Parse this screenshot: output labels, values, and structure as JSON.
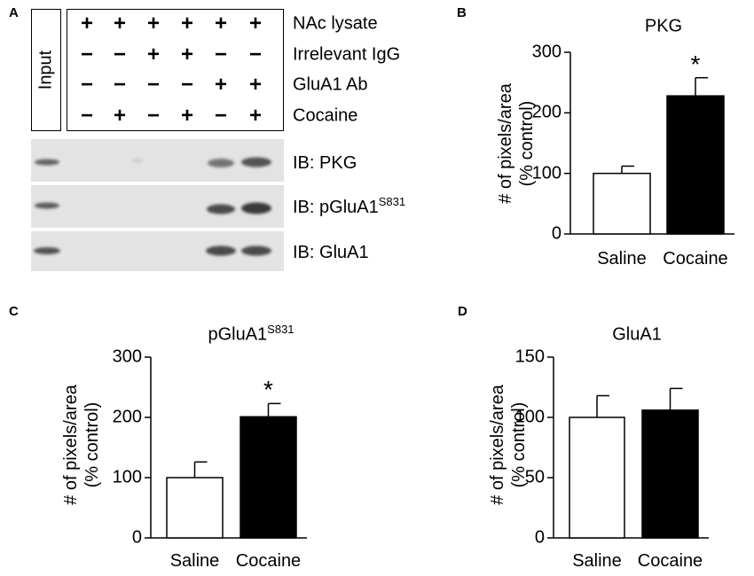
{
  "panels": {
    "a": "A",
    "b": "B",
    "c": "C",
    "d": "D"
  },
  "panel_a": {
    "input_label": "Input",
    "rows": [
      {
        "label": "NAc lysate",
        "signs": [
          "+",
          "+",
          "+",
          "+",
          "+",
          "+"
        ]
      },
      {
        "label": "Irrelevant IgG",
        "signs": [
          "−",
          "−",
          "+",
          "+",
          "−",
          "−"
        ]
      },
      {
        "label": "GluA1 Ab",
        "signs": [
          "−",
          "−",
          "−",
          "−",
          "+",
          "+"
        ]
      },
      {
        "label": "Cocaine",
        "signs": [
          "−",
          "+",
          "−",
          "+",
          "−",
          "+"
        ]
      }
    ],
    "blots": [
      {
        "label": "IB: PKG",
        "label_sup": ""
      },
      {
        "label": "IB: pGluA1",
        "label_sup": "S831"
      },
      {
        "label": "IB: GluA1",
        "label_sup": ""
      }
    ]
  },
  "chart_data": [
    {
      "panel": "B",
      "type": "bar",
      "title": "PKG",
      "title_sup": "",
      "ylabel_line1": "# of pixels/area",
      "ylabel_line2": "(% control)",
      "categories": [
        "Saline",
        "Cocaine"
      ],
      "values": [
        100,
        228
      ],
      "errors": [
        12,
        30
      ],
      "fills": [
        "#ffffff",
        "#000000"
      ],
      "significance": [
        "",
        "*"
      ],
      "ylim": [
        0,
        300
      ],
      "yticks": [
        0,
        100,
        200,
        300
      ]
    },
    {
      "panel": "C",
      "type": "bar",
      "title": "pGluA1",
      "title_sup": "S831",
      "ylabel_line1": "# of pixels/area",
      "ylabel_line2": "(% control)",
      "categories": [
        "Saline",
        "Cocaine"
      ],
      "values": [
        100,
        201
      ],
      "errors": [
        26,
        22
      ],
      "fills": [
        "#ffffff",
        "#000000"
      ],
      "significance": [
        "",
        "*"
      ],
      "ylim": [
        0,
        300
      ],
      "yticks": [
        0,
        100,
        200,
        300
      ]
    },
    {
      "panel": "D",
      "type": "bar",
      "title": "GluA1",
      "title_sup": "",
      "ylabel_line1": "# of pixels/area",
      "ylabel_line2": "(% control)",
      "categories": [
        "Saline",
        "Cocaine"
      ],
      "values": [
        100,
        106
      ],
      "errors": [
        18,
        18
      ],
      "fills": [
        "#ffffff",
        "#000000"
      ],
      "significance": [
        "",
        ""
      ],
      "ylim": [
        0,
        150
      ],
      "yticks": [
        0,
        50,
        100,
        150
      ]
    }
  ]
}
